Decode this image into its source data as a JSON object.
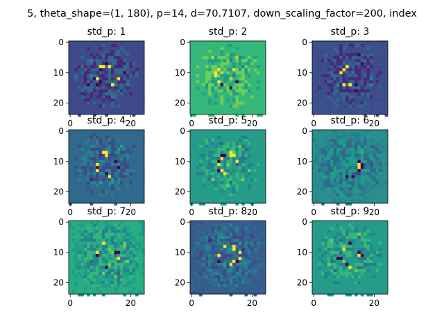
{
  "figure": {
    "suptitle": "5, theta_shape=(1, 180), p=14, d=70.7107, down_scaling_factor=200, index"
  },
  "chart_data": {
    "type": "heatmap",
    "colormap": "viridis",
    "image_size": [
      25,
      25
    ],
    "grid": false,
    "x_ticks": [
      0,
      20
    ],
    "y_ticks": [
      0,
      10,
      20
    ],
    "x_tick_labels": [
      "0",
      "20"
    ],
    "y_tick_labels": [
      "0",
      "10",
      "20"
    ],
    "panels": [
      {
        "title": "std_p: 1",
        "background_color": "#3e4a89"
      },
      {
        "title": "std_p: 2",
        "background_color": "#35b779"
      },
      {
        "title": "std_p: 3",
        "background_color": "#3b518b"
      },
      {
        "title": "std_p: 4",
        "background_color": "#31688e"
      },
      {
        "title": "std_p: 5",
        "background_color": "#2a9a8a"
      },
      {
        "title": "std_p: 6",
        "background_color": "#2a8e8c"
      },
      {
        "title": "std_p: 7",
        "background_color": "#27ad81"
      },
      {
        "title": "std_p: 8",
        "background_color": "#365c8d"
      },
      {
        "title": "std_p: 9",
        "background_color": "#299a8a"
      }
    ]
  }
}
